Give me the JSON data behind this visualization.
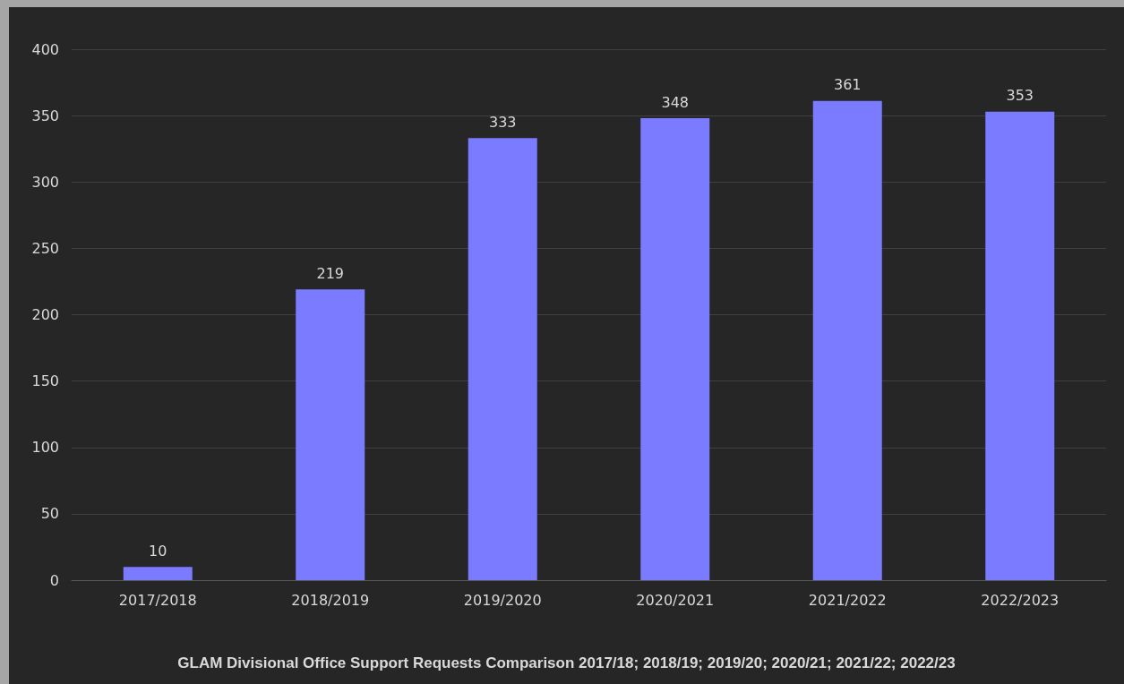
{
  "chart_data": {
    "type": "bar",
    "title": "GLAM Divisional Office Support Requests Comparison 2017/18; 2018/19; 2019/20; 2020/21; 2021/22; 2022/23",
    "categories": [
      "2017/2018",
      "2018/2019",
      "2019/2020",
      "2020/2021",
      "2021/2022",
      "2022/2023"
    ],
    "values": [
      10,
      219,
      333,
      348,
      361,
      353
    ],
    "color": "#7b7bff",
    "ylim": [
      0,
      400
    ],
    "yticks": [
      0,
      50,
      100,
      150,
      200,
      250,
      300,
      350,
      400
    ],
    "grid": "y",
    "data_labels": true
  }
}
